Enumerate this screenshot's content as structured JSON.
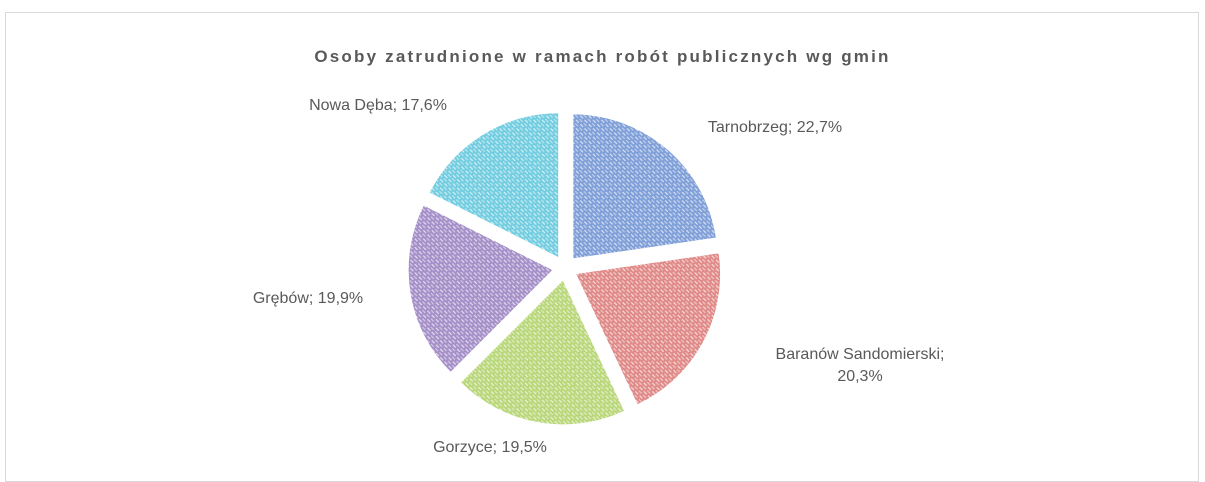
{
  "chart_data": {
    "type": "pie",
    "title": "Osoby zatrudnione w ramach robót publicznych wg gmin",
    "values": [
      22.7,
      20.3,
      19.5,
      19.9,
      17.6
    ],
    "value_labels": [
      "Tarnobrzeg; 22,7%",
      "Baranów Sandomierski; 20,3%",
      "Gorzyce; 19,5%",
      "Grębów; 19,9%",
      "Nowa Dęba; 17,6%"
    ],
    "colors": [
      "#7f9fd8",
      "#e08a88",
      "#b9d77a",
      "#a58fc8",
      "#72cde0"
    ],
    "exploded": true,
    "pattern": true
  }
}
